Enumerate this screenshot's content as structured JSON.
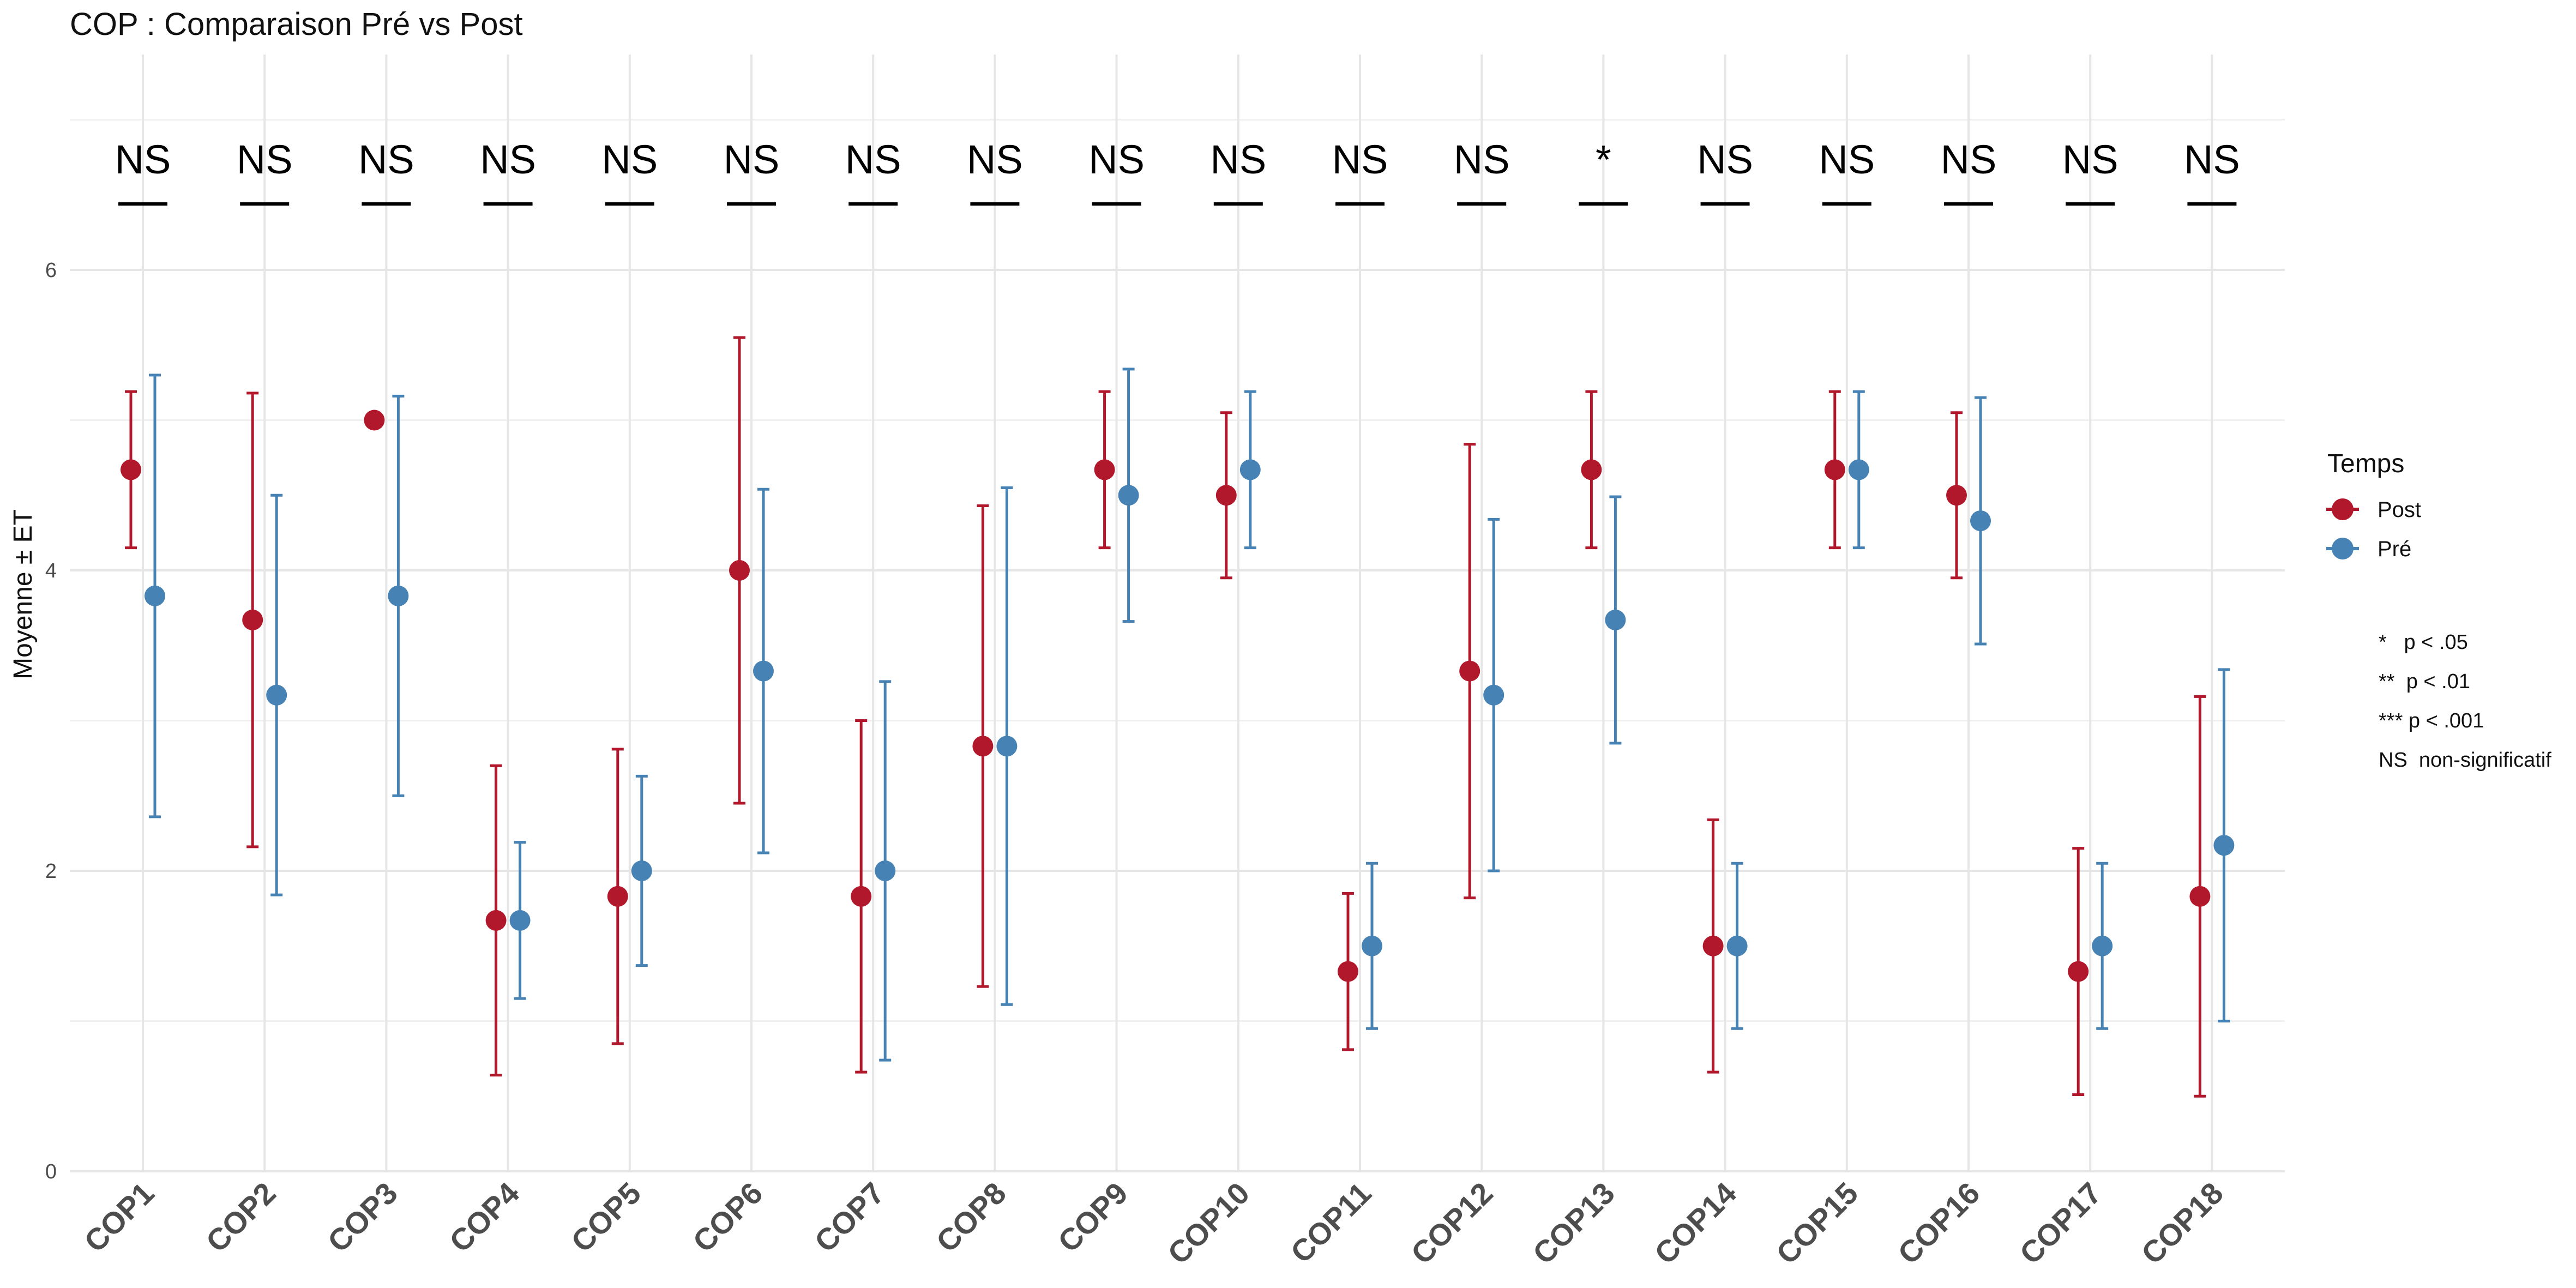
{
  "chart_data": {
    "type": "scatter",
    "title": "COP : Comparaison Pré vs Post",
    "xlabel": "",
    "ylabel": "Moyenne ± ET",
    "ylim": [
      0,
      7.2
    ],
    "yticks": [
      0,
      2,
      4,
      6
    ],
    "grid": true,
    "categories": [
      "COP1",
      "COP2",
      "COP3",
      "COP4",
      "COP5",
      "COP6",
      "COP7",
      "COP8",
      "COP9",
      "COP10",
      "COP11",
      "COP12",
      "COP13",
      "COP14",
      "COP15",
      "COP16",
      "COP17",
      "COP18"
    ],
    "series": [
      {
        "name": "Post",
        "color": "#B2182B",
        "mean": [
          4.67,
          3.67,
          5.0,
          1.67,
          1.83,
          4.0,
          1.83,
          2.83,
          4.67,
          4.5,
          1.33,
          3.33,
          4.67,
          1.5,
          4.67,
          4.5,
          1.33,
          1.83
        ],
        "sd": [
          0.52,
          1.51,
          0.0,
          1.03,
          0.98,
          1.55,
          1.17,
          1.6,
          0.52,
          0.55,
          0.52,
          1.51,
          0.52,
          0.84,
          0.52,
          0.55,
          0.82,
          1.33
        ]
      },
      {
        "name": "Pré",
        "color": "#4682B4",
        "mean": [
          3.83,
          3.17,
          3.83,
          1.67,
          2.0,
          3.33,
          2.0,
          2.83,
          4.5,
          4.67,
          1.5,
          3.17,
          3.67,
          1.5,
          4.67,
          4.33,
          1.5,
          2.17
        ],
        "sd": [
          1.47,
          1.33,
          1.33,
          0.52,
          0.63,
          1.21,
          1.26,
          1.72,
          0.84,
          0.52,
          0.55,
          1.17,
          0.82,
          0.55,
          0.52,
          0.82,
          0.55,
          1.17
        ]
      }
    ],
    "significance": [
      "NS",
      "NS",
      "NS",
      "NS",
      "NS",
      "NS",
      "NS",
      "NS",
      "NS",
      "NS",
      "NS",
      "NS",
      "*",
      "NS",
      "NS",
      "NS",
      "NS",
      "NS"
    ],
    "legend": {
      "title": "Temps",
      "placement": "right",
      "entries": [
        "Post",
        "Pré"
      ]
    },
    "notes": [
      "*   p < .05",
      "**  p < .01",
      "*** p < .001",
      "NS  non-significatif"
    ]
  }
}
